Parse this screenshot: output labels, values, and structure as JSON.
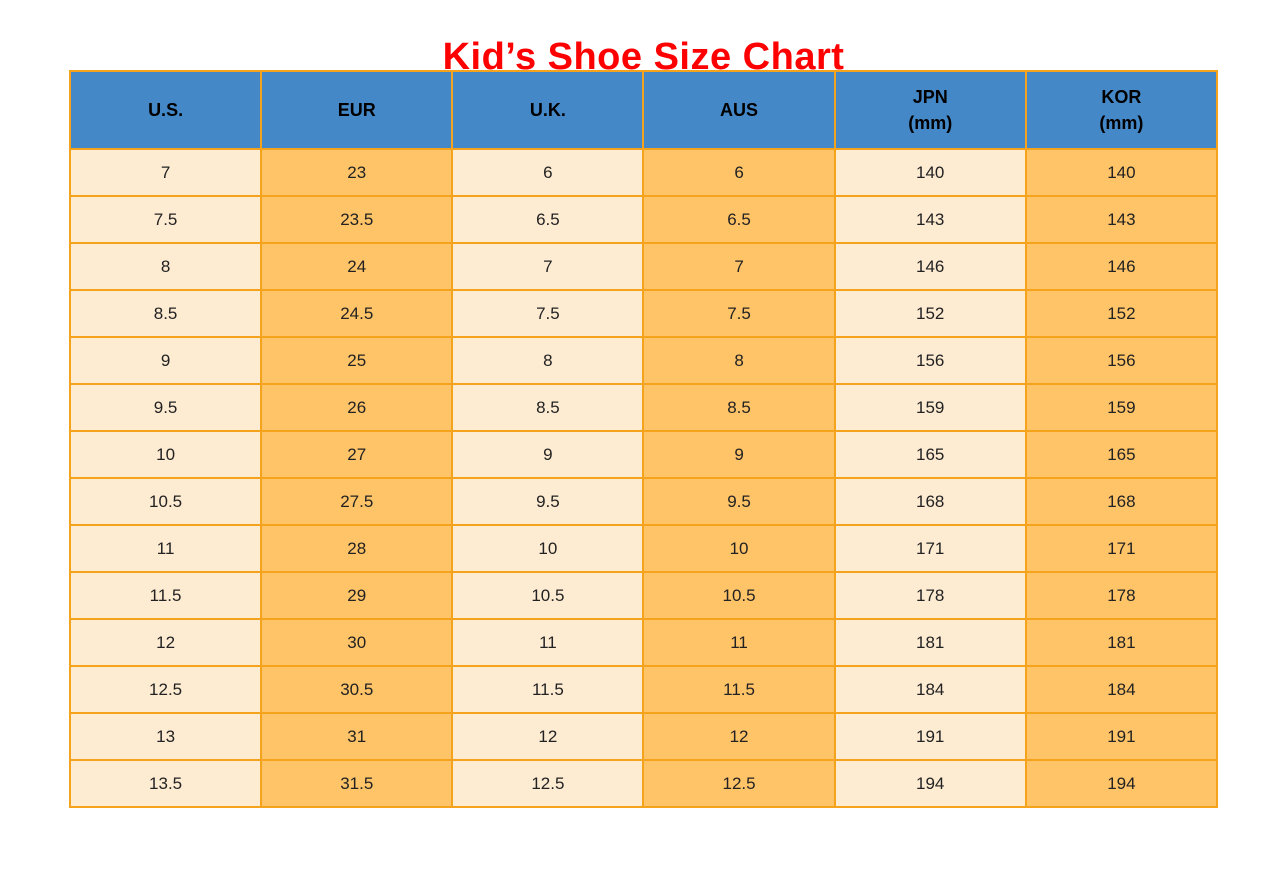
{
  "title": "Kid’s Shoe Size Chart",
  "colors": {
    "title_color": "#FE0000",
    "header_bg": "#4588C7",
    "header_text": "#000000",
    "col_light_bg": "#FDEBD2",
    "col_orange_bg": "#FFC368",
    "border": "#F5A31C",
    "cell_text": "#222222"
  },
  "chart_data": {
    "type": "table",
    "title": "Kid’s Shoe Size Chart",
    "columns": [
      "U.S.",
      "EUR",
      "U.K.",
      "AUS",
      "JPN (mm)",
      "KOR (mm)"
    ],
    "column_display": [
      "U.S.",
      "EUR",
      "U.K.",
      "AUS",
      "JPN\n(mm)",
      "KOR\n(mm)"
    ],
    "rows": [
      [
        7,
        23,
        6,
        6,
        140,
        140
      ],
      [
        7.5,
        23.5,
        6.5,
        6.5,
        143,
        143
      ],
      [
        8,
        24,
        7,
        7,
        146,
        146
      ],
      [
        8.5,
        24.5,
        7.5,
        7.5,
        152,
        152
      ],
      [
        9,
        25,
        8,
        8,
        156,
        156
      ],
      [
        9.5,
        26,
        8.5,
        8.5,
        159,
        159
      ],
      [
        10,
        27,
        9,
        9,
        165,
        165
      ],
      [
        10.5,
        27.5,
        9.5,
        9.5,
        168,
        168
      ],
      [
        11,
        28,
        10,
        10,
        171,
        171
      ],
      [
        11.5,
        29,
        10.5,
        10.5,
        178,
        178
      ],
      [
        12,
        30,
        11,
        11,
        181,
        181
      ],
      [
        12.5,
        30.5,
        11.5,
        11.5,
        184,
        184
      ],
      [
        13,
        31,
        12,
        12,
        191,
        191
      ],
      [
        13.5,
        31.5,
        12.5,
        12.5,
        194,
        194
      ]
    ]
  }
}
